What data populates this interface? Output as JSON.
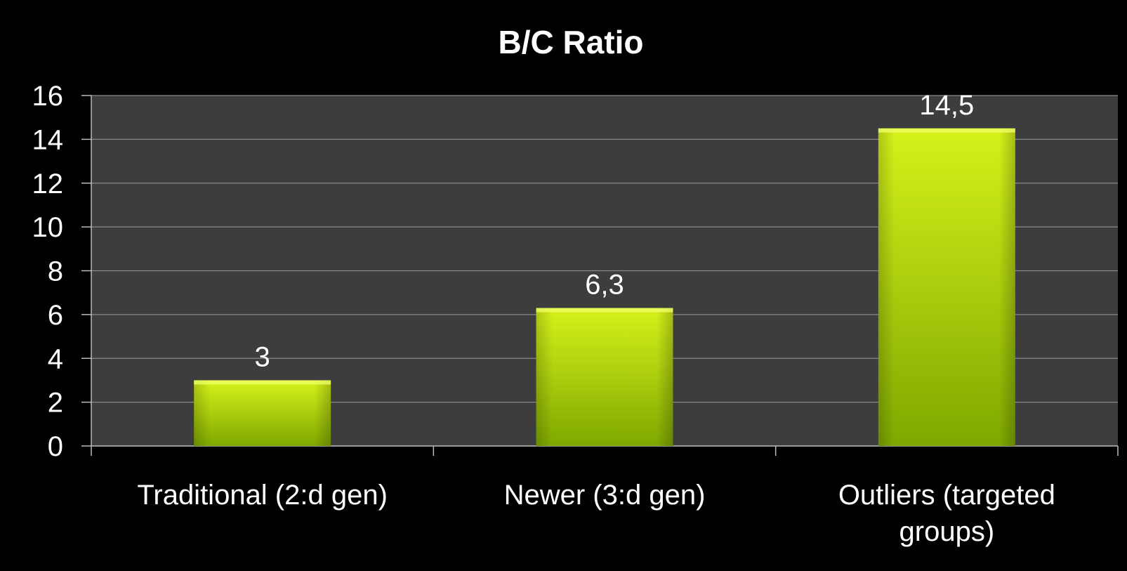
{
  "chart_data": {
    "type": "bar",
    "title": "B/C Ratio",
    "xlabel": "",
    "ylabel": "",
    "categories": [
      [
        "Traditional (2:d gen)"
      ],
      [
        "Newer (3:d gen)"
      ],
      [
        "Outliers (targeted",
        "groups)"
      ]
    ],
    "values": [
      3,
      6.3,
      14.5
    ],
    "data_labels": [
      "3",
      "6,3",
      "14,5"
    ],
    "ylim": [
      0,
      16
    ],
    "yticks": [
      0,
      2,
      4,
      6,
      8,
      10,
      12,
      14,
      16
    ],
    "grid": true,
    "legend": "none"
  },
  "colors": {
    "background": "#000000",
    "plot_area": "#3d3d3d",
    "gridline": "#8a8a8a",
    "axis": "#bdbdbd",
    "bar_top": "#d6f21a",
    "bar_bottom": "#7fa800",
    "text": "#ffffff"
  }
}
